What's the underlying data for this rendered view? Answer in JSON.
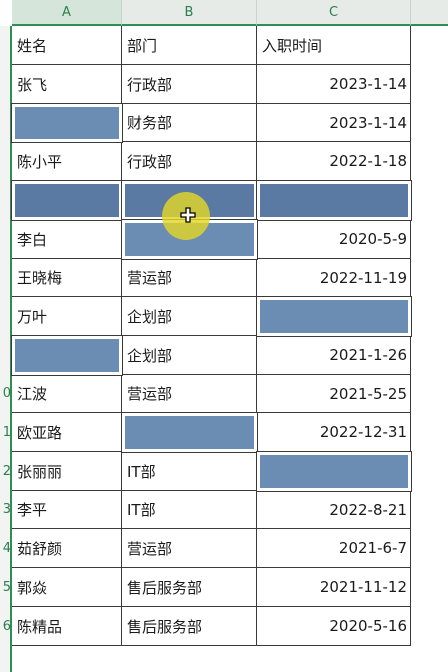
{
  "columns": [
    "A",
    "B",
    "C"
  ],
  "headers": {
    "name": "姓名",
    "dept": "部门",
    "date": "入职时间"
  },
  "rows": [
    {
      "num": "",
      "name": "张飞",
      "dept": "行政部",
      "date": "2023-1-14",
      "hidden": []
    },
    {
      "num": "",
      "name": "",
      "dept": "财务部",
      "date": "2023-1-14",
      "hidden": [
        "name"
      ]
    },
    {
      "num": "",
      "name": "陈小平",
      "dept": "行政部",
      "date": "2022-1-18",
      "hidden": []
    },
    {
      "num": "",
      "name": "",
      "dept": "",
      "date": "",
      "hidden": [
        "name",
        "dept",
        "date"
      ]
    },
    {
      "num": "",
      "name": "李白",
      "dept": "",
      "date": "2020-5-9",
      "hidden": [
        "dept"
      ]
    },
    {
      "num": "",
      "name": "王晓梅",
      "dept": "营运部",
      "date": "2022-11-19",
      "hidden": []
    },
    {
      "num": "",
      "name": "万叶",
      "dept": "企划部",
      "date": "",
      "hidden": [
        "date"
      ]
    },
    {
      "num": "",
      "name": "",
      "dept": "企划部",
      "date": "2021-1-26",
      "hidden": [
        "name"
      ]
    },
    {
      "num": "0",
      "name": "江波",
      "dept": "营运部",
      "date": "2021-5-25",
      "hidden": []
    },
    {
      "num": "1",
      "name": "欧亚路",
      "dept": "",
      "date": "2022-12-31",
      "hidden": [
        "dept"
      ]
    },
    {
      "num": "2",
      "name": "张丽丽",
      "dept": "IT部",
      "date": "",
      "hidden": [
        "date"
      ]
    },
    {
      "num": "3",
      "name": "李平",
      "dept": "IT部",
      "date": "2022-8-21",
      "hidden": []
    },
    {
      "num": "4",
      "name": "茹舒颜",
      "dept": "营运部",
      "date": "2021-6-7",
      "hidden": []
    },
    {
      "num": "5",
      "name": "郭焱",
      "dept": "售后服务部",
      "date": "2021-11-12",
      "hidden": []
    },
    {
      "num": "6",
      "name": "陈精品",
      "dept": "售后服务部",
      "date": "2020-5-16",
      "hidden": []
    }
  ],
  "colors": {
    "fill": "#6b8cb3",
    "highlight": "#e2d628",
    "header_accent": "#2f8d57"
  },
  "cursor_icon": "crosshair-plus-icon"
}
